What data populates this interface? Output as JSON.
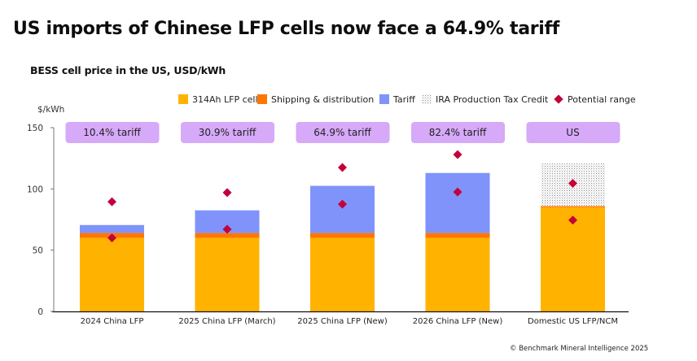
{
  "header": {
    "title": "US imports of Chinese LFP cells now face a 64.9% tariff",
    "subtitle": "BESS cell price in the US, USD/kWh"
  },
  "footer": {
    "credit": "© Benchmark Mineral Intelligence 2025"
  },
  "colors": {
    "cell": "#FFB300",
    "shipping": "#FF7700",
    "tariff": "#7F93FB",
    "ira_dots": "#8a8a8a",
    "range": "#C4003A",
    "badge": "#D7A9F9",
    "axis": "#555555"
  },
  "chart_data": {
    "type": "bar",
    "stacked": true,
    "title": "BESS cell price in the US, USD/kWh",
    "ylabel": "$/kWh",
    "xlabel": "",
    "ylim": [
      0,
      150
    ],
    "yticks": [
      0,
      50,
      100,
      150
    ],
    "grid": false,
    "legend_position": "top",
    "categories": [
      "2024 China LFP",
      "2025 China LFP (March)",
      "2025 China LFP (New)",
      "2026 China LFP (New)",
      "Domestic US LFP/NCM"
    ],
    "badges": [
      "10.4% tariff",
      "30.9% tariff",
      "64.9% tariff",
      "82.4% tariff",
      "US"
    ],
    "series": [
      {
        "name": "314Ah LFP cell",
        "key": "cell",
        "pattern": "solid",
        "values": [
          60,
          60,
          60,
          60,
          85
        ]
      },
      {
        "name": "Shipping & distribution",
        "key": "shipping",
        "pattern": "solid",
        "values": [
          4,
          4,
          4,
          4,
          1
        ]
      },
      {
        "name": "Tariff",
        "key": "tariff",
        "pattern": "solid",
        "values": [
          6.5,
          18.5,
          38.5,
          49,
          0
        ]
      },
      {
        "name": "IRA Production Tax Credit",
        "key": "ira",
        "pattern": "dotted",
        "values": [
          0,
          0,
          0,
          0,
          35
        ]
      }
    ],
    "potential_range": {
      "name": "Potential range",
      "low": [
        60,
        67,
        87.5,
        97.5,
        74.5
      ],
      "high": [
        89.5,
        97,
        117.5,
        128,
        104.5
      ]
    }
  }
}
